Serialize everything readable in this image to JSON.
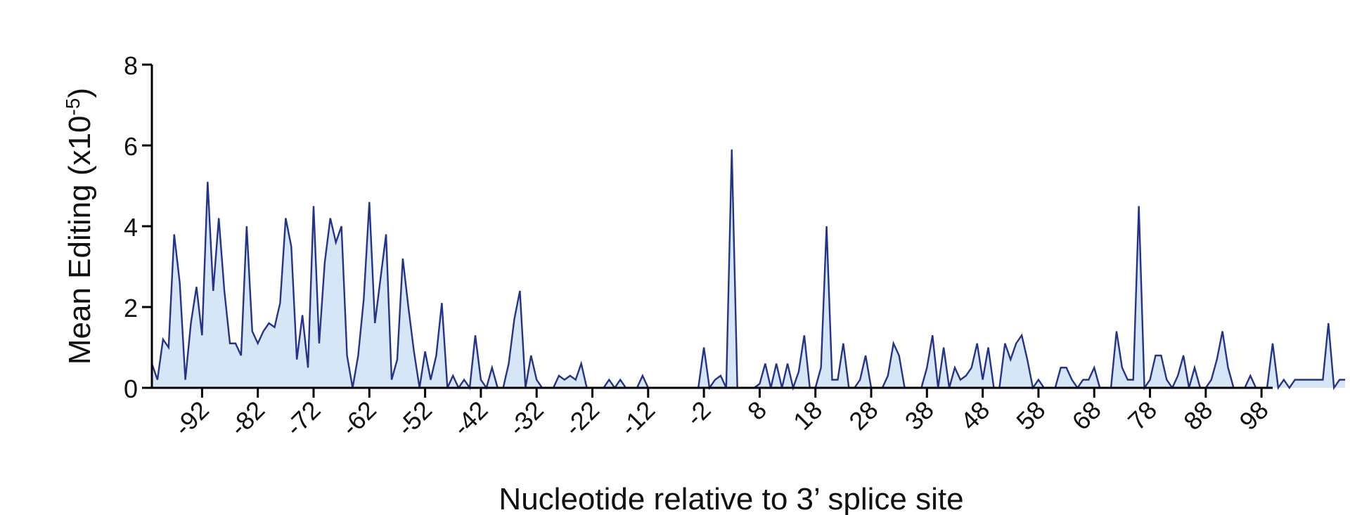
{
  "chart_data": {
    "type": "area",
    "xlabel": "Nucleotide relative to 3’ splice site",
    "ylabel_main": "Mean Editing (x10",
    "ylabel_exp": "-5",
    "ylabel_close": ")",
    "xlim": [
      -101,
      100
    ],
    "ylim": [
      0,
      8
    ],
    "yticks": [
      "0",
      "2",
      "4",
      "6",
      "8"
    ],
    "xticks": [
      "-92",
      "-82",
      "-72",
      "-62",
      "-52",
      "-42",
      "-32",
      "-22",
      "-12",
      "-2",
      "8",
      "18",
      "28",
      "38",
      "48",
      "58",
      "68",
      "78",
      "88",
      "98"
    ],
    "line_color": "#24338a",
    "fill_color": "#d6e6f7",
    "series": [
      {
        "x_start": -101,
        "values": [
          0.6,
          0.2,
          1.2,
          1.0,
          3.8,
          2.6,
          0.2,
          1.6,
          2.5,
          1.3,
          5.1,
          2.4,
          4.2,
          2.4,
          1.1,
          1.1,
          0.8,
          4.0,
          1.4,
          1.1,
          1.4,
          1.6,
          1.5,
          2.1,
          4.2,
          3.5,
          0.7,
          1.8,
          0.5,
          4.5,
          1.1,
          3.1,
          4.2,
          3.6,
          4.0,
          0.8,
          0.0,
          0.8,
          2.2,
          4.6,
          1.6,
          2.7,
          3.8,
          0.2,
          0.7,
          3.2,
          2.0,
          0.9,
          0.0,
          0.9,
          0.2,
          0.8,
          2.1,
          0.0,
          0.3,
          0.0,
          0.2,
          0.0,
          1.3,
          0.2,
          0.0,
          0.5,
          0.0,
          0.0,
          0.6,
          1.7,
          2.4,
          0.0,
          0.8,
          0.2,
          0.0,
          0.0,
          0.0,
          0.3,
          0.2,
          0.3,
          0.2,
          0.6,
          0.0,
          0.0,
          0.0,
          0.0,
          0.2,
          0.0,
          0.2,
          0.0,
          0.0,
          0.0,
          0.3,
          0.0,
          0.0,
          0.0,
          0.0,
          0.0,
          0.0,
          0.0,
          0.0,
          0.0,
          0.0,
          1.0,
          0.0,
          0.2,
          0.3,
          0.0,
          5.9,
          0.0,
          0.0,
          0.0,
          0.0,
          0.1,
          0.6,
          0.0,
          0.6,
          0.0,
          0.6,
          0.0,
          0.4,
          1.3,
          0.0,
          0.0,
          0.5,
          4.0,
          0.2,
          0.2,
          1.1,
          0.0,
          0.0,
          0.2,
          0.8,
          0.0,
          0.0,
          0.0,
          0.3,
          1.1,
          0.8,
          0.0,
          0.0,
          0.0,
          0.0,
          0.5,
          1.3,
          0.0,
          1.0,
          0.0,
          0.5,
          0.2,
          0.3,
          0.5,
          1.1,
          0.2,
          1.0,
          0.0,
          0.0,
          1.1,
          0.7,
          1.1,
          1.3,
          0.7,
          0.0,
          0.2,
          0.0,
          0.0,
          0.0,
          0.5,
          0.5,
          0.2,
          0.0,
          0.2,
          0.2,
          0.5,
          0.0,
          0.0,
          0.0,
          1.4,
          0.5,
          0.2,
          0.2,
          4.5,
          0.0,
          0.2,
          0.8,
          0.8,
          0.2,
          0.0,
          0.3,
          0.8,
          0.0,
          0.5,
          0.0,
          0.0,
          0.2,
          0.7,
          1.4,
          0.5,
          0.0,
          0.0,
          0.0,
          0.3,
          0.0,
          0.0,
          0.0,
          1.1,
          0.0,
          0.2,
          0.0,
          0.2,
          0.2,
          0.2,
          0.2,
          0.2,
          0.2,
          1.6,
          0.0,
          0.2,
          0.2
        ]
      }
    ]
  }
}
